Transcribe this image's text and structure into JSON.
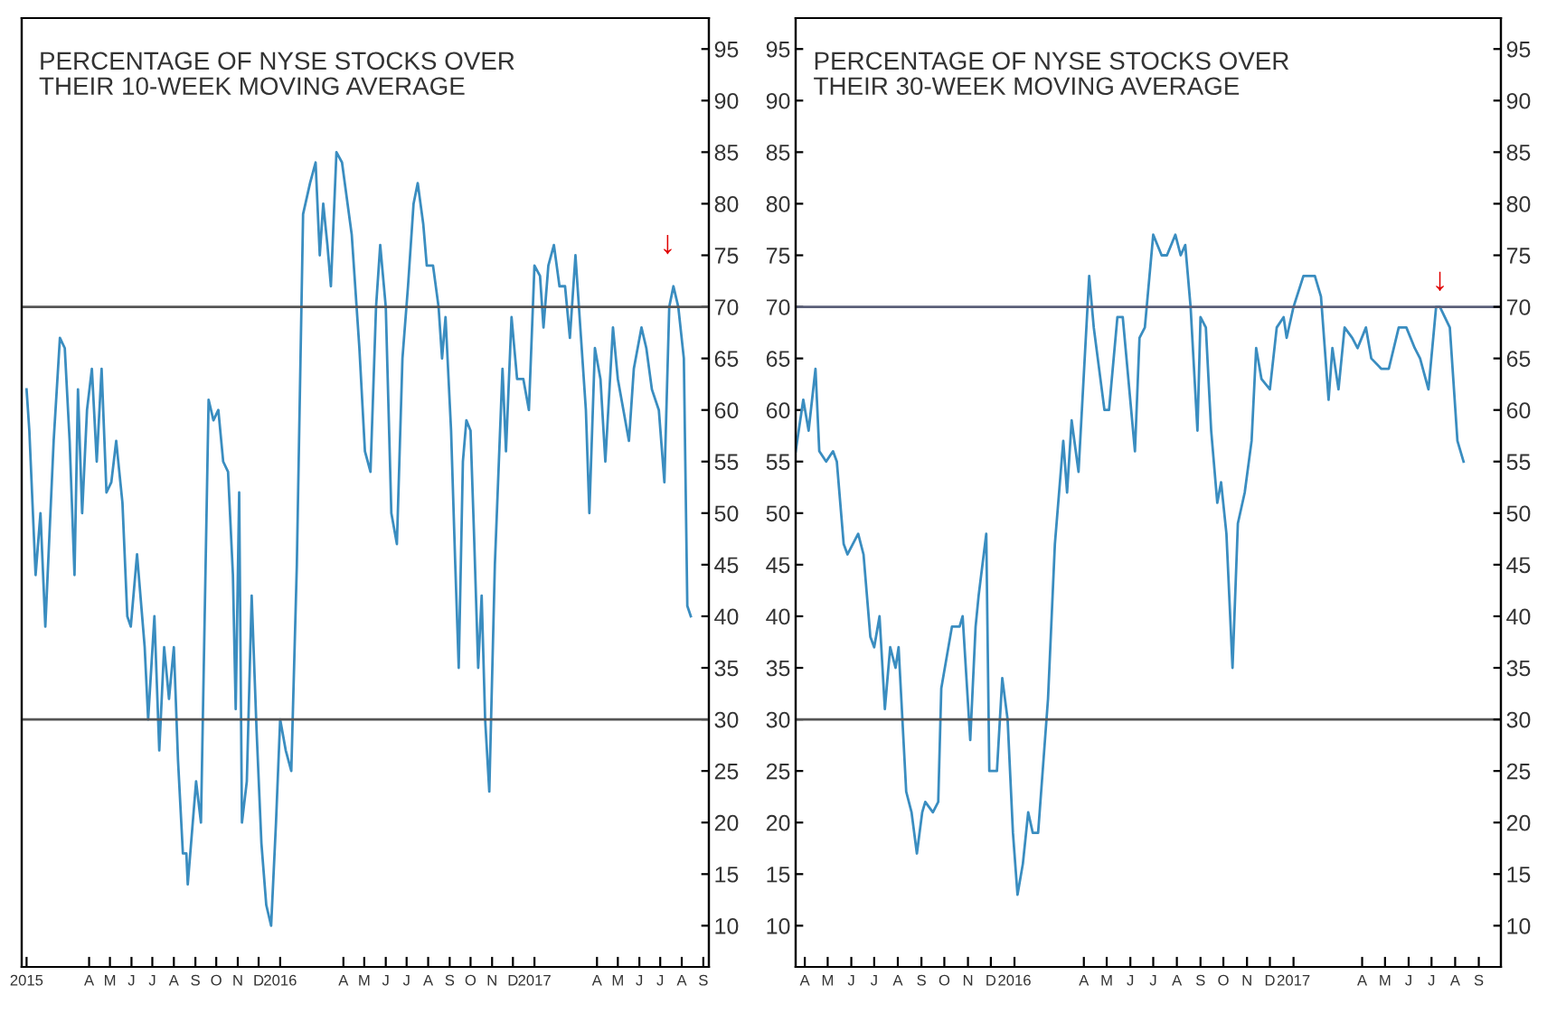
{
  "chart_data": [
    {
      "type": "line",
      "title": "PERCENTAGE OF NYSE STOCKS OVER\nTHEIR 10-WEEK MOVING AVERAGE",
      "x": [
        "2015-01-01",
        "2015-01-05",
        "2015-01-14",
        "2015-01-21",
        "2015-01-28",
        "2015-02-09",
        "2015-02-18",
        "2015-02-25",
        "2015-03-04",
        "2015-03-11",
        "2015-03-16",
        "2015-03-22",
        "2015-03-29",
        "2015-04-05",
        "2015-04-12",
        "2015-04-19",
        "2015-04-26",
        "2015-05-03",
        "2015-05-10",
        "2015-05-19",
        "2015-05-26",
        "2015-05-31",
        "2015-06-09",
        "2015-06-20",
        "2015-06-25",
        "2015-07-04",
        "2015-07-11",
        "2015-07-18",
        "2015-07-25",
        "2015-08-01",
        "2015-08-07",
        "2015-08-14",
        "2015-08-19",
        "2015-08-21",
        "2015-09-02",
        "2015-09-09",
        "2015-09-20",
        "2015-09-27",
        "2015-10-04",
        "2015-10-11",
        "2015-10-18",
        "2015-10-25",
        "2015-10-29",
        "2015-11-03",
        "2015-11-07",
        "2015-11-14",
        "2015-11-21",
        "2015-11-28",
        "2015-12-05",
        "2015-12-12",
        "2015-12-19",
        "2015-12-26",
        "2016-01-01",
        "2016-01-09",
        "2016-01-17",
        "2016-01-25",
        "2016-02-03",
        "2016-02-13",
        "2016-02-21",
        "2016-02-27",
        "2016-03-03",
        "2016-03-09",
        "2016-03-14",
        "2016-03-22",
        "2016-03-30",
        "2016-04-13",
        "2016-04-24",
        "2016-05-02",
        "2016-05-10",
        "2016-05-18",
        "2016-05-24",
        "2016-06-01",
        "2016-06-09",
        "2016-06-17",
        "2016-06-25",
        "2016-07-03",
        "2016-07-11",
        "2016-07-17",
        "2016-07-25",
        "2016-07-30",
        "2016-08-08",
        "2016-08-16",
        "2016-08-21",
        "2016-08-26",
        "2016-09-03",
        "2016-09-09",
        "2016-09-14",
        "2016-09-20",
        "2016-09-25",
        "2016-10-01",
        "2016-10-06",
        "2016-10-12",
        "2016-10-17",
        "2016-10-22",
        "2016-10-28",
        "2016-11-05",
        "2016-11-16",
        "2016-11-21",
        "2016-11-29",
        "2016-12-07",
        "2016-12-16",
        "2016-12-24",
        "2017-01-01",
        "2017-01-09",
        "2017-01-14",
        "2017-01-21",
        "2017-01-29",
        "2017-02-06",
        "2017-02-14",
        "2017-02-21",
        "2017-03-01",
        "2017-03-09",
        "2017-03-16",
        "2017-03-21",
        "2017-03-29",
        "2017-04-06",
        "2017-04-13",
        "2017-04-24",
        "2017-05-01",
        "2017-05-09",
        "2017-05-17",
        "2017-05-24",
        "2017-06-04",
        "2017-06-11",
        "2017-06-19",
        "2017-06-29",
        "2017-07-07",
        "2017-07-14",
        "2017-07-20",
        "2017-07-27",
        "2017-08-04",
        "2017-08-09",
        "2017-08-14"
      ],
      "series": [
        {
          "color": "#3a8dc0",
          "axis": "y2",
          "values": [
            62,
            58,
            44,
            50,
            39,
            57,
            67,
            66,
            57,
            44,
            62,
            50,
            60,
            64,
            55,
            64,
            52,
            53,
            57,
            51,
            40,
            39,
            46,
            37,
            30,
            40,
            27,
            37,
            32,
            37,
            26,
            17,
            17,
            14,
            24,
            20,
            61,
            59,
            60,
            55,
            54,
            44,
            31,
            52,
            20,
            24,
            42,
            29,
            18,
            12,
            10,
            20,
            30,
            27,
            25,
            45,
            79,
            82,
            84,
            75,
            80,
            76,
            72,
            85,
            84,
            77,
            66,
            56,
            54,
            70,
            76,
            70,
            50,
            47,
            65,
            72,
            80,
            82,
            78,
            74,
            74,
            70,
            65,
            69,
            58,
            45,
            35,
            55,
            59,
            58,
            48,
            35,
            42,
            30,
            23,
            45,
            64,
            56,
            69,
            63,
            63,
            60,
            74,
            73,
            68,
            74,
            76,
            72,
            72,
            67,
            75,
            67,
            60,
            50,
            66,
            63,
            55,
            68,
            63,
            60,
            57,
            64,
            68,
            66,
            62,
            60,
            53,
            70,
            72,
            70,
            65,
            41,
            40
          ]
        }
      ],
      "xlim": [
        "2014-12-25",
        "2017-09-09"
      ],
      "xticks": [
        {
          "value": "2015-01-01",
          "label": "2015"
        },
        {
          "value": "2015-04-01",
          "label": "A"
        },
        {
          "value": "2015-05-01",
          "label": "M"
        },
        {
          "value": "2015-06-01",
          "label": "J"
        },
        {
          "value": "2015-07-01",
          "label": "J"
        },
        {
          "value": "2015-08-01",
          "label": "A"
        },
        {
          "value": "2015-09-01",
          "label": "S"
        },
        {
          "value": "2015-10-01",
          "label": "O"
        },
        {
          "value": "2015-11-01",
          "label": "N"
        },
        {
          "value": "2015-12-01",
          "label": "D"
        },
        {
          "value": "2016-01-01",
          "label": "2016"
        },
        {
          "value": "2016-04-01",
          "label": "A"
        },
        {
          "value": "2016-05-01",
          "label": "M"
        },
        {
          "value": "2016-06-01",
          "label": "J"
        },
        {
          "value": "2016-07-01",
          "label": "J"
        },
        {
          "value": "2016-08-01",
          "label": "A"
        },
        {
          "value": "2016-09-01",
          "label": "S"
        },
        {
          "value": "2016-10-01",
          "label": "O"
        },
        {
          "value": "2016-11-01",
          "label": "N"
        },
        {
          "value": "2016-12-01",
          "label": "D"
        },
        {
          "value": "2017-01-01",
          "label": "2017"
        },
        {
          "value": "2017-04-01",
          "label": "A"
        },
        {
          "value": "2017-05-01",
          "label": "M"
        },
        {
          "value": "2017-06-01",
          "label": "J"
        },
        {
          "value": "2017-07-01",
          "label": "J"
        },
        {
          "value": "2017-08-01",
          "label": "A"
        },
        {
          "value": "2017-09-01",
          "label": "S"
        }
      ],
      "y2lim": [
        6,
        98
      ],
      "y2ticks": [
        10,
        15,
        20,
        25,
        30,
        35,
        40,
        45,
        50,
        55,
        60,
        65,
        70,
        75,
        80,
        85,
        90,
        95
      ],
      "ref_lines": [
        {
          "axis": "y2",
          "value": 70,
          "color": "#555555"
        },
        {
          "axis": "y2",
          "value": 30,
          "color": "#555555"
        }
      ],
      "annotations": [
        "↓"
      ],
      "grid": false,
      "legend": false
    },
    {
      "type": "line",
      "title": "PERCENTAGE OF NYSE STOCKS OVER\nTHEIR 30-WEEK MOVING AVERAGE",
      "x": [
        "2015-03-20",
        "2015-03-30",
        "2015-04-06",
        "2015-04-15",
        "2015-04-20",
        "2015-04-29",
        "2015-05-08",
        "2015-05-13",
        "2015-05-22",
        "2015-05-27",
        "2015-06-10",
        "2015-06-17",
        "2015-06-26",
        "2015-07-01",
        "2015-07-08",
        "2015-07-15",
        "2015-07-22",
        "2015-07-29",
        "2015-08-02",
        "2015-08-12",
        "2015-08-19",
        "2015-08-26",
        "2015-09-02",
        "2015-09-06",
        "2015-09-16",
        "2015-09-23",
        "2015-09-27",
        "2015-10-11",
        "2015-10-21",
        "2015-10-25",
        "2015-11-04",
        "2015-11-11",
        "2015-11-15",
        "2015-11-25",
        "2015-11-29",
        "2015-12-09",
        "2015-12-16",
        "2015-12-23",
        "2015-12-30",
        "2016-01-05",
        "2016-01-12",
        "2016-01-19",
        "2016-01-25",
        "2016-02-01",
        "2016-02-08",
        "2016-02-14",
        "2016-02-23",
        "2016-03-05",
        "2016-03-10",
        "2016-03-16",
        "2016-03-25",
        "2016-04-08",
        "2016-04-14",
        "2016-04-28",
        "2016-05-04",
        "2016-05-15",
        "2016-05-22",
        "2016-06-07",
        "2016-06-13",
        "2016-06-20",
        "2016-07-01",
        "2016-07-12",
        "2016-07-19",
        "2016-07-30",
        "2016-08-06",
        "2016-08-12",
        "2016-08-19",
        "2016-08-28",
        "2016-09-01",
        "2016-09-08",
        "2016-09-15",
        "2016-09-23",
        "2016-09-28",
        "2016-10-05",
        "2016-10-13",
        "2016-10-20",
        "2016-10-29",
        "2016-11-07",
        "2016-11-13",
        "2016-11-20",
        "2016-12-01",
        "2016-12-10",
        "2016-12-19",
        "2016-12-23",
        "2017-01-01",
        "2017-01-14",
        "2017-01-29",
        "2017-02-06",
        "2017-02-16",
        "2017-02-21",
        "2017-03-01",
        "2017-03-09",
        "2017-03-19",
        "2017-03-26",
        "2017-04-06",
        "2017-04-13",
        "2017-04-26",
        "2017-05-06",
        "2017-05-19",
        "2017-05-29",
        "2017-06-09",
        "2017-06-16",
        "2017-06-27",
        "2017-07-07",
        "2017-07-12",
        "2017-07-25",
        "2017-08-04",
        "2017-08-12"
      ],
      "series": [
        {
          "color": "#3a8dc0",
          "values": [
            56,
            61,
            58,
            64,
            56,
            55,
            56,
            55,
            47,
            46,
            48,
            46,
            38,
            37,
            40,
            31,
            37,
            35,
            37,
            23,
            21,
            17,
            21,
            22,
            21,
            22,
            33,
            39,
            39,
            40,
            28,
            39,
            42,
            48,
            25,
            25,
            34,
            30,
            19,
            13,
            16,
            21,
            19,
            19,
            26,
            32,
            47,
            57,
            52,
            59,
            54,
            73,
            68,
            60,
            60,
            69,
            69,
            56,
            67,
            68,
            77,
            75,
            75,
            77,
            75,
            76,
            70,
            58,
            69,
            68,
            58,
            51,
            53,
            48,
            35,
            49,
            52,
            57,
            66,
            63,
            62,
            68,
            69,
            67,
            70,
            73,
            73,
            71,
            61,
            66,
            62,
            68,
            67,
            66,
            68,
            65,
            64,
            64,
            68,
            68,
            66,
            65,
            62,
            70,
            70,
            68,
            57,
            55
          ]
        }
      ],
      "xlim": [
        "2015-03-20",
        "2017-09-30"
      ],
      "xticks": [
        {
          "value": "2015-04-01",
          "label": "A"
        },
        {
          "value": "2015-05-01",
          "label": "M"
        },
        {
          "value": "2015-06-01",
          "label": "J"
        },
        {
          "value": "2015-07-01",
          "label": "J"
        },
        {
          "value": "2015-08-01",
          "label": "A"
        },
        {
          "value": "2015-09-01",
          "label": "S"
        },
        {
          "value": "2015-10-01",
          "label": "O"
        },
        {
          "value": "2015-11-01",
          "label": "N"
        },
        {
          "value": "2015-12-01",
          "label": "D"
        },
        {
          "value": "2016-01-01",
          "label": "2016"
        },
        {
          "value": "2016-04-01",
          "label": "A"
        },
        {
          "value": "2016-05-01",
          "label": "M"
        },
        {
          "value": "2016-06-01",
          "label": "J"
        },
        {
          "value": "2016-07-01",
          "label": "J"
        },
        {
          "value": "2016-08-01",
          "label": "A"
        },
        {
          "value": "2016-09-01",
          "label": "S"
        },
        {
          "value": "2016-10-01",
          "label": "O"
        },
        {
          "value": "2016-11-01",
          "label": "N"
        },
        {
          "value": "2016-12-01",
          "label": "D"
        },
        {
          "value": "2017-01-01",
          "label": "2017"
        },
        {
          "value": "2017-04-01",
          "label": "A"
        },
        {
          "value": "2017-05-01",
          "label": "M"
        },
        {
          "value": "2017-06-01",
          "label": "J"
        },
        {
          "value": "2017-07-01",
          "label": "J"
        },
        {
          "value": "2017-08-01",
          "label": "A"
        },
        {
          "value": "2017-09-01",
          "label": "S"
        }
      ],
      "ylim": [
        6,
        98
      ],
      "yticks": [
        10,
        15,
        20,
        25,
        30,
        35,
        40,
        45,
        50,
        55,
        60,
        65,
        70,
        75,
        80,
        85,
        90,
        95
      ],
      "y2lim": [
        6,
        98
      ],
      "y2ticks": [
        10,
        15,
        20,
        25,
        30,
        35,
        40,
        45,
        50,
        55,
        60,
        65,
        70,
        75,
        80,
        85,
        90,
        95
      ],
      "ref_lines": [
        {
          "axis": "y",
          "value": 70,
          "color": "#5a5f78"
        },
        {
          "axis": "y",
          "value": 30,
          "color": "#555555"
        }
      ],
      "annotations": [
        {
          "text": "↓",
          "x": "2017-07-12",
          "y": 70
        }
      ],
      "grid": false,
      "legend": false
    }
  ]
}
